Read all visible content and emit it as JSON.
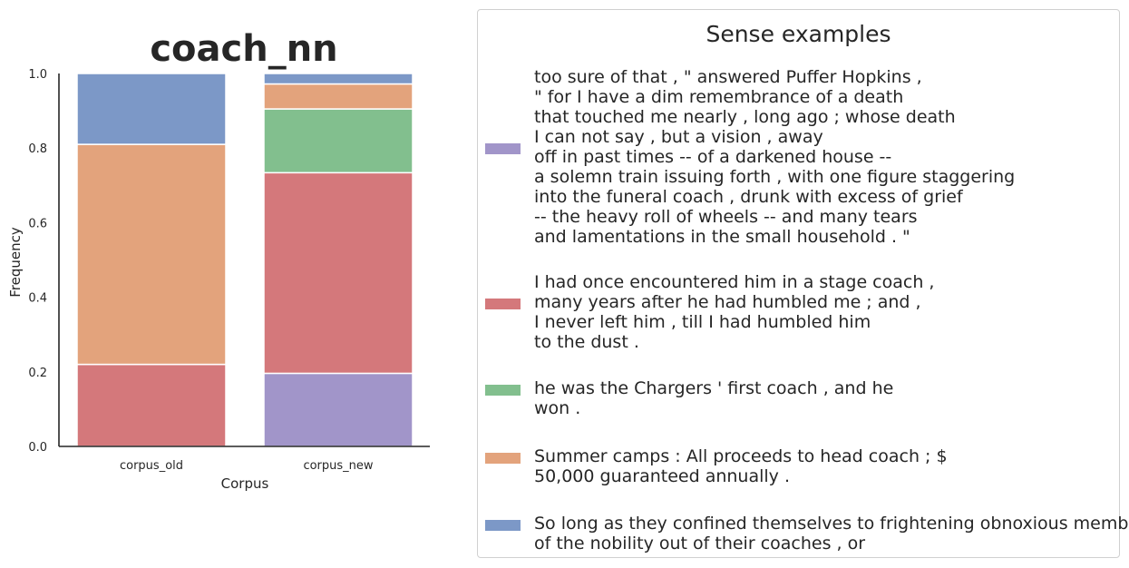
{
  "chart_data": {
    "type": "bar",
    "stacked": true,
    "title": "coach_nn",
    "xlabel": "Corpus",
    "ylabel": "Frequency",
    "ylim": [
      0,
      1.0
    ],
    "yticks": [
      "0.0",
      "0.2",
      "0.4",
      "0.6",
      "0.8",
      "1.0"
    ],
    "categories": [
      "corpus_old",
      "corpus_new"
    ],
    "series": [
      {
        "color": "#a195c9",
        "values": [
          0.0,
          0.196
        ]
      },
      {
        "color": "#d4787b",
        "values": [
          0.22,
          0.538
        ]
      },
      {
        "color": "#82bf8e",
        "values": [
          0.0,
          0.171
        ]
      },
      {
        "color": "#e3a37c",
        "values": [
          0.59,
          0.067
        ]
      },
      {
        "color": "#7c98c7",
        "values": [
          0.19,
          0.028
        ]
      }
    ]
  },
  "legend": {
    "title": "Sense examples",
    "entries": [
      {
        "color": "#a195c9",
        "text": "too sure of that , \" answered Puffer Hopkins ,\n\" for I have a dim remembrance of a death\nthat touched me nearly , long ago ; whose death\nI can not say , but a vision , away\noff in past times -- of a darkened house --\na solemn train issuing forth , with one figure staggering\ninto the funeral coach , drunk with excess of grief\n-- the heavy roll of wheels -- and many tears\nand lamentations in the small household . \""
      },
      {
        "color": "#d4787b",
        "text": "I had once encountered him in a stage coach ,\nmany years after he had humbled me ; and ,\nI never left him , till I had humbled him\nto the dust ."
      },
      {
        "color": "#82bf8e",
        "text": "he was the Chargers ' first coach , and he\nwon ."
      },
      {
        "color": "#e3a37c",
        "text": "Summer camps : All proceeds to head coach ; $\n50,000 guaranteed annually ."
      },
      {
        "color": "#7c98c7",
        "text": "So long as they confined themselves to frightening obnoxious members\nof the nobility out of their coaches , or"
      }
    ]
  }
}
